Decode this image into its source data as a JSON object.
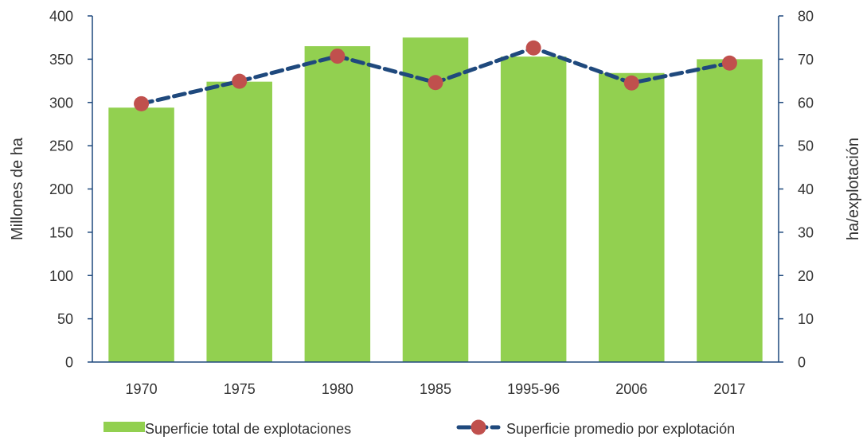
{
  "chart_data": {
    "type": "bar",
    "categories": [
      "1970",
      "1975",
      "1980",
      "1985",
      "1995-96",
      "2006",
      "2017"
    ],
    "series": [
      {
        "name": "Superficie total de explotaciones",
        "type": "bar",
        "axis": "left",
        "values": [
          294,
          324,
          365,
          375,
          353,
          334,
          350
        ]
      },
      {
        "name": "Superficie promedio por explotación",
        "type": "line",
        "axis": "right",
        "values": [
          59.7,
          64.9,
          70.7,
          64.6,
          72.6,
          64.5,
          69.1
        ]
      }
    ],
    "ylabel": "Millones de ha",
    "ylabel_right": "ha/explotación",
    "ylim": [
      0,
      400
    ],
    "ylim_right": [
      0,
      80
    ],
    "yticks": [
      "0",
      "50",
      "100",
      "150",
      "200",
      "250",
      "300",
      "350",
      "400"
    ],
    "yticks_right": [
      "0",
      "10",
      "20",
      "30",
      "40",
      "50",
      "60",
      "70",
      "80"
    ],
    "legend_position": "bottom",
    "grid": false,
    "colors": {
      "bar": "#92d050",
      "line": "#1f497d",
      "marker": "#c0504d",
      "axis": "#1f497d"
    }
  }
}
